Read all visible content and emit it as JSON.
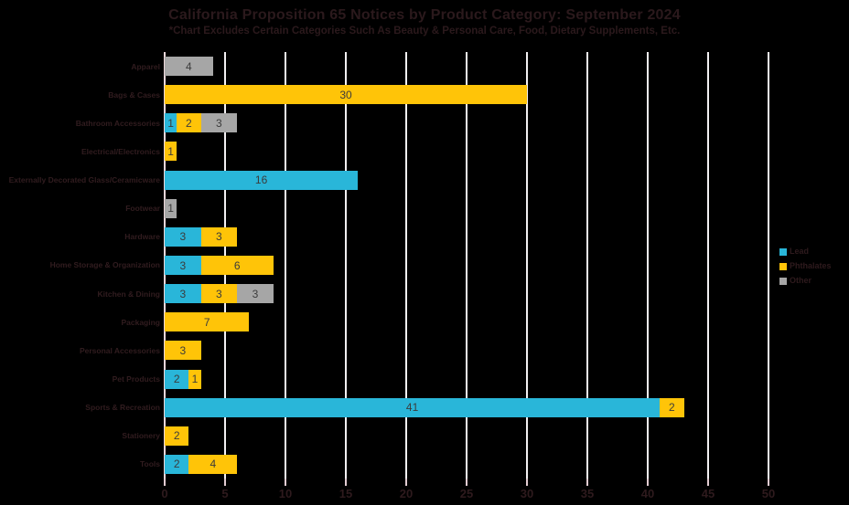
{
  "chart_data": {
    "type": "bar",
    "orientation": "horizontal-stacked",
    "title": "California Proposition 65 Notices by Product Category: September 2024",
    "subtitle": "*Chart Excludes Certain Categories Such As Beauty & Personal Care, Food, Dietary Supplements, Etc.",
    "categories": [
      "Apparel",
      "Bags & Cases",
      "Bathroom Accessories",
      "Electrical/Electronics",
      "Externally Decorated Glass/Ceramicware",
      "Footwear",
      "Hardware",
      "Home Storage & Organization",
      "Kitchen & Dining",
      "Packaging",
      "Personal Accessories",
      "Pet Products",
      "Sports & Recreation",
      "Stationery",
      "Tools"
    ],
    "series": [
      {
        "name": "Lead",
        "color": "#29b6d9",
        "values": [
          0,
          0,
          1,
          0,
          16,
          0,
          3,
          3,
          3,
          0,
          0,
          2,
          41,
          0,
          2
        ]
      },
      {
        "name": "Phthalates",
        "color": "#ffc408",
        "values": [
          0,
          30,
          2,
          1,
          0,
          0,
          3,
          6,
          3,
          7,
          3,
          1,
          2,
          2,
          4
        ]
      },
      {
        "name": "Other",
        "color": "#a6a6a6",
        "values": [
          4,
          0,
          3,
          0,
          0,
          1,
          0,
          0,
          3,
          0,
          0,
          0,
          0,
          0,
          0
        ]
      }
    ],
    "xlabel": "",
    "ylabel": "",
    "xlim": [
      0,
      50
    ],
    "xticks": [
      0,
      5,
      10,
      15,
      20,
      25,
      30,
      35,
      40,
      45,
      50
    ],
    "grid": "vertical-white",
    "legend_position": "right",
    "colors": {
      "background": "#000000",
      "title_text": "#2b191c",
      "category_text": "#311c1f",
      "value_text": "#3b3b3b",
      "gridline": "#f2f0f2",
      "axis_line": "#ecd7da",
      "tick_mark": "#e2ccd2"
    }
  }
}
